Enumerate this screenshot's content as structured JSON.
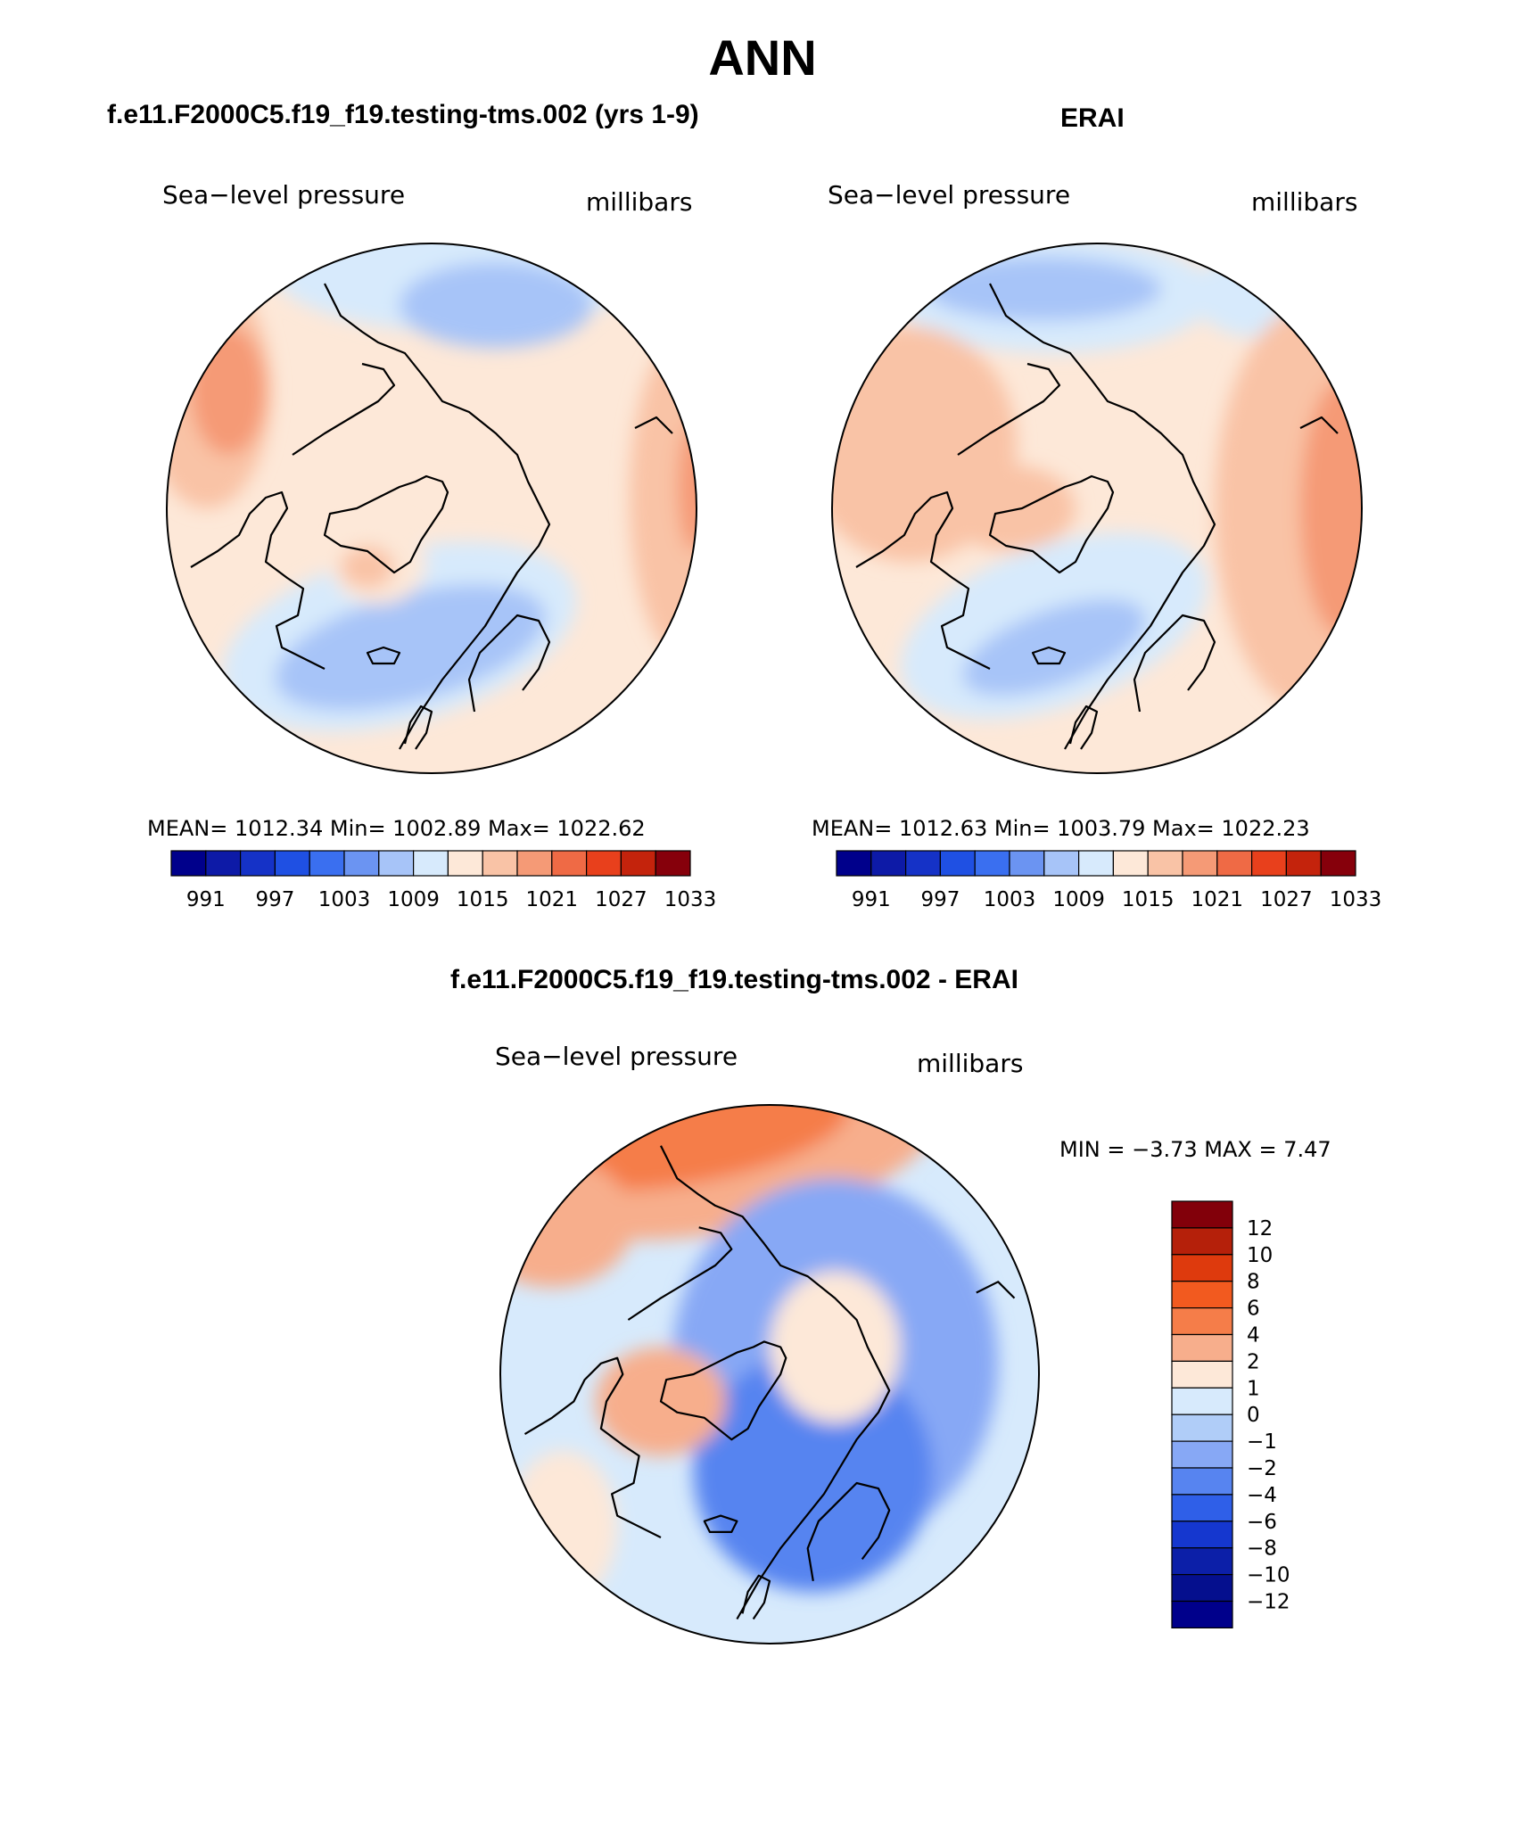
{
  "page_title": "ANN",
  "colors": {
    "abs_scale": [
      "#00008b",
      "#0d1aa7",
      "#1532c7",
      "#1f50e3",
      "#3a6ff0",
      "#6b94f2",
      "#a7c4f8",
      "#d7eafc",
      "#fde8d8",
      "#f9c3a6",
      "#f59a76",
      "#ef6a45",
      "#e8401c",
      "#c4230c",
      "#86000b"
    ],
    "diff_scale": [
      "#82000a",
      "#b5200a",
      "#de3a0d",
      "#f25a1f",
      "#f57d49",
      "#f7ae8c",
      "#fde8d8",
      "#d7eafc",
      "#b0cdf8",
      "#87a8f5",
      "#5784f0",
      "#2f5fe8",
      "#1537cf",
      "#0c1fa8",
      "#050f8e",
      "#00008b"
    ]
  },
  "panels": [
    {
      "case_title": "f.e11.F2000C5.f19_f19.testing-tms.002 (yrs 1-9)",
      "left_label": "Sea−level pressure",
      "right_label": "millibars",
      "stats": "MEAN=  1012.34   Min=  1002.89   Max=  1022.62",
      "colorbar_ticks": [
        "991",
        "997",
        "1003",
        "1009",
        "1015",
        "1021",
        "1027",
        "1033"
      ]
    },
    {
      "case_title": "ERAI",
      "left_label": "Sea−level pressure",
      "right_label": "millibars",
      "stats": "MEAN=  1012.63   Min=  1003.79   Max=  1022.23",
      "colorbar_ticks": [
        "991",
        "997",
        "1003",
        "1009",
        "1015",
        "1021",
        "1027",
        "1033"
      ]
    },
    {
      "case_title": "f.e11.F2000C5.f19_f19.testing-tms.002 - ERAI",
      "left_label": "Sea−level pressure",
      "right_label": "millibars",
      "stats": "MIN =   −3.73  MAX =     7.47",
      "colorbar_ticks": [
        "12",
        "10",
        "8",
        "6",
        "4",
        "2",
        "1",
        "0",
        "−1",
        "−2",
        "−4",
        "−6",
        "−8",
        "−10",
        "−12"
      ]
    }
  ]
}
